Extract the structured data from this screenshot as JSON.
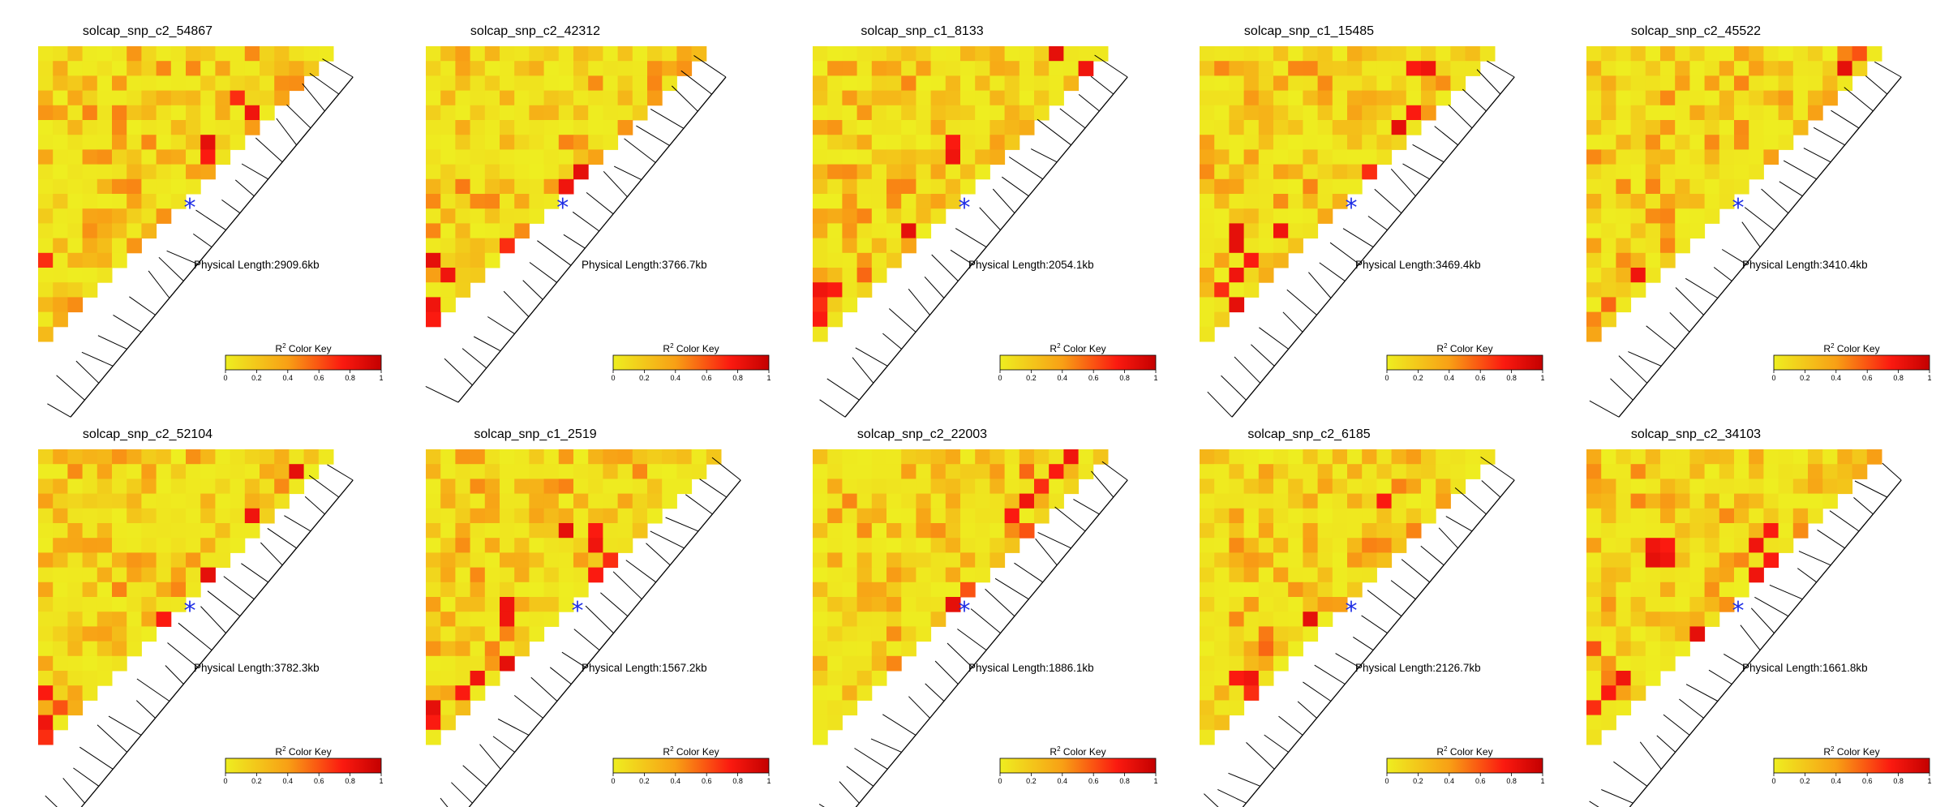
{
  "color_key": {
    "label_prefix": "R",
    "label_sup": "2",
    "label_suffix": " Color Key",
    "ticks": [
      "0",
      "0.2",
      "0.4",
      "0.6",
      "0.8",
      "1"
    ],
    "colors": [
      "#eeee20",
      "#f8a015",
      "#fb1a10",
      "#c40000"
    ]
  },
  "marker_color": "#1f2ee6",
  "chart_data": [
    {
      "type": "heatmap",
      "title": "solcap_snp_c2_54867",
      "n_snps": 21,
      "marker_index": 10,
      "physical_length": "Physical Length:2909.6kb",
      "hot_spots": [
        [
          4,
          14,
          0.8
        ],
        [
          3,
          13,
          0.7
        ],
        [
          6,
          11,
          0.85
        ],
        [
          7,
          11,
          0.75
        ],
        [
          8,
          12,
          0.55
        ],
        [
          10,
          11,
          0.5
        ],
        [
          14,
          0,
          0.7
        ],
        [
          18,
          3,
          0.5
        ],
        [
          19,
          2,
          0.55
        ],
        [
          17,
          2,
          0.45
        ]
      ]
    },
    {
      "type": "heatmap",
      "title": "solcap_snp_c2_42312",
      "n_snps": 20,
      "marker_index": 10,
      "physical_length": "Physical Length:3766.7kb",
      "hot_spots": [
        [
          5,
          14,
          0.75
        ],
        [
          6,
          13,
          0.8
        ],
        [
          8,
          10,
          0.85
        ],
        [
          9,
          9,
          0.8
        ],
        [
          14,
          0,
          0.85
        ],
        [
          15,
          1,
          0.8
        ],
        [
          17,
          0,
          0.8
        ],
        [
          18,
          0,
          0.75
        ],
        [
          13,
          5,
          0.7
        ],
        [
          9,
          2,
          0.5
        ]
      ]
    },
    {
      "type": "heatmap",
      "title": "solcap_snp_c1_8133",
      "n_snps": 21,
      "marker_index": 10,
      "physical_length": "Physical Length:2054.1kb",
      "hot_spots": [
        [
          0,
          16,
          0.85
        ],
        [
          1,
          18,
          0.8
        ],
        [
          6,
          9,
          0.75
        ],
        [
          7,
          9,
          0.8
        ],
        [
          12,
          6,
          0.85
        ],
        [
          16,
          0,
          0.8
        ],
        [
          16,
          1,
          0.75
        ],
        [
          17,
          0,
          0.7
        ],
        [
          18,
          0,
          0.75
        ],
        [
          15,
          3,
          0.55
        ]
      ]
    },
    {
      "type": "heatmap",
      "title": "solcap_snp_c1_15485",
      "n_snps": 21,
      "marker_index": 10,
      "physical_length": "Physical Length:3469.4kb",
      "hot_spots": [
        [
          1,
          15,
          0.8
        ],
        [
          1,
          14,
          0.75
        ],
        [
          4,
          14,
          0.75
        ],
        [
          5,
          13,
          0.85
        ],
        [
          8,
          11,
          0.7
        ],
        [
          12,
          2,
          0.85
        ],
        [
          13,
          2,
          0.85
        ],
        [
          12,
          5,
          0.8
        ],
        [
          14,
          3,
          0.75
        ],
        [
          15,
          2,
          0.8
        ],
        [
          17,
          2,
          0.85
        ],
        [
          16,
          1,
          0.7
        ]
      ]
    },
    {
      "type": "heatmap",
      "title": "solcap_snp_c2_45522",
      "n_snps": 21,
      "marker_index": 10,
      "physical_length": "Physical Length:3410.4kb",
      "hot_spots": [
        [
          0,
          18,
          0.6
        ],
        [
          1,
          17,
          0.85
        ],
        [
          15,
          3,
          0.8
        ],
        [
          17,
          1,
          0.55
        ],
        [
          14,
          2,
          0.45
        ],
        [
          11,
          4,
          0.45
        ]
      ]
    },
    {
      "type": "heatmap",
      "title": "solcap_snp_c2_52104",
      "n_snps": 21,
      "marker_index": 10,
      "physical_length": "Physical Length:3782.3kb",
      "hot_spots": [
        [
          1,
          17,
          0.85
        ],
        [
          4,
          14,
          0.8
        ],
        [
          8,
          11,
          0.85
        ],
        [
          11,
          8,
          0.75
        ],
        [
          16,
          0,
          0.75
        ],
        [
          18,
          0,
          0.8
        ],
        [
          19,
          0,
          0.7
        ],
        [
          17,
          1,
          0.6
        ]
      ]
    },
    {
      "type": "heatmap",
      "title": "solcap_snp_c1_2519",
      "n_snps": 21,
      "marker_index": 10,
      "physical_length": "Physical Length:1567.2kb",
      "hot_spots": [
        [
          5,
          9,
          0.85
        ],
        [
          5,
          11,
          0.75
        ],
        [
          6,
          11,
          0.8
        ],
        [
          7,
          12,
          0.7
        ],
        [
          8,
          11,
          0.75
        ],
        [
          10,
          5,
          0.8
        ],
        [
          11,
          5,
          0.8
        ],
        [
          14,
          5,
          0.85
        ],
        [
          15,
          3,
          0.8
        ],
        [
          16,
          2,
          0.75
        ],
        [
          17,
          0,
          0.85
        ],
        [
          18,
          0,
          0.75
        ]
      ]
    },
    {
      "type": "heatmap",
      "title": "solcap_snp_c2_22003",
      "n_snps": 21,
      "marker_index": 10,
      "physical_length": "Physical Length:1886.1kb",
      "hot_spots": [
        [
          0,
          17,
          0.8
        ],
        [
          1,
          16,
          0.75
        ],
        [
          1,
          14,
          0.55
        ],
        [
          2,
          15,
          0.7
        ],
        [
          3,
          14,
          0.8
        ],
        [
          4,
          13,
          0.75
        ],
        [
          10,
          9,
          0.85
        ],
        [
          9,
          10,
          0.6
        ],
        [
          5,
          14,
          0.6
        ]
      ]
    },
    {
      "type": "heatmap",
      "title": "solcap_snp_c2_6185",
      "n_snps": 21,
      "marker_index": 10,
      "physical_length": "Physical Length:2126.7kb",
      "hot_spots": [
        [
          3,
          12,
          0.75
        ],
        [
          11,
          7,
          0.85
        ],
        [
          15,
          3,
          0.8
        ],
        [
          15,
          2,
          0.75
        ],
        [
          16,
          3,
          0.7
        ],
        [
          13,
          4,
          0.55
        ],
        [
          12,
          4,
          0.5
        ]
      ]
    },
    {
      "type": "heatmap",
      "title": "solcap_snp_c2_34103",
      "n_snps": 21,
      "marker_index": 10,
      "physical_length": "Physical Length:1661.8kb",
      "hot_spots": [
        [
          6,
          4,
          0.8
        ],
        [
          7,
          4,
          0.85
        ],
        [
          7,
          5,
          0.8
        ],
        [
          6,
          5,
          0.75
        ],
        [
          5,
          12,
          0.75
        ],
        [
          6,
          11,
          0.8
        ],
        [
          7,
          12,
          0.75
        ],
        [
          8,
          11,
          0.8
        ],
        [
          12,
          7,
          0.85
        ],
        [
          15,
          2,
          0.8
        ],
        [
          16,
          1,
          0.75
        ],
        [
          17,
          0,
          0.7
        ],
        [
          13,
          0,
          0.6
        ]
      ]
    }
  ]
}
